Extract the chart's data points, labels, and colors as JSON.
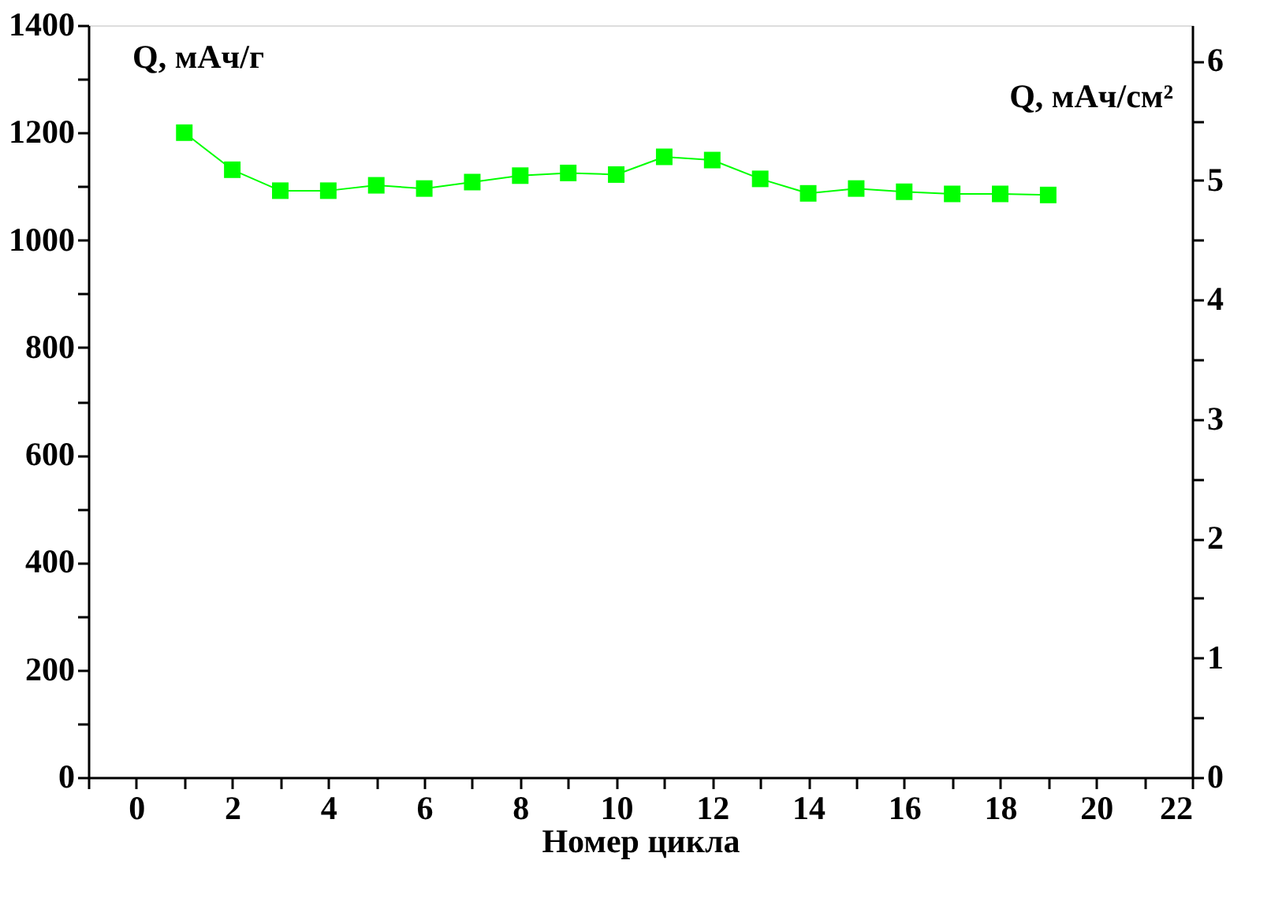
{
  "chart_data": {
    "type": "line",
    "xlabel": "Номер цикла",
    "ylabel": "Q, мАч/г",
    "y2label": "Q, мАч/см²",
    "x": [
      1,
      2,
      3,
      4,
      5,
      6,
      7,
      8,
      9,
      10,
      11,
      12,
      13,
      14,
      15,
      16,
      17,
      18,
      19
    ],
    "series": [
      {
        "color": "#00ff00",
        "values": [
          1200,
          1131,
          1092,
          1092,
          1102,
          1096,
          1108,
          1120,
          1125,
          1122,
          1155,
          1149,
          1114,
          1087,
          1096,
          1090,
          1086,
          1086,
          1084
        ]
      }
    ],
    "xlim": [
      -1,
      22
    ],
    "xticks": [
      {
        "value": -1,
        "label": null
      },
      0,
      {
        "value": 1,
        "label": null
      },
      2,
      {
        "value": 3,
        "label": null
      },
      4,
      {
        "value": 5,
        "label": null
      },
      6,
      {
        "value": 7,
        "label": null
      },
      8,
      {
        "value": 9,
        "label": null
      },
      10,
      {
        "value": 11,
        "label": null
      },
      12,
      {
        "value": 13,
        "label": null
      },
      14,
      {
        "value": 15,
        "label": null
      },
      16,
      {
        "value": 17,
        "label": null
      },
      18,
      {
        "value": 19,
        "label": null
      },
      20,
      {
        "value": 21,
        "label": null
      },
      22
    ],
    "ylim": [
      0,
      1400
    ],
    "yticks": [
      0,
      {
        "value": 100,
        "label": null
      },
      200,
      {
        "value": 300,
        "label": null
      },
      400,
      {
        "value": 500,
        "label": null
      },
      600,
      {
        "value": 700,
        "label": null
      },
      800,
      {
        "value": 900,
        "label": null
      },
      1000,
      {
        "value": 1100,
        "label": null
      },
      1200,
      {
        "value": 1300,
        "label": null
      },
      1400
    ],
    "y2lim": [
      0,
      6.3
    ],
    "y2ticks": [
      0,
      {
        "value": 0.5,
        "label": null
      },
      1,
      {
        "value": 1.5,
        "label": null
      },
      2,
      {
        "value": 2.5,
        "label": null
      },
      3,
      {
        "value": 3.5,
        "label": null
      },
      4,
      {
        "value": 4.5,
        "label": null
      },
      5,
      {
        "value": 5.5,
        "label": null
      },
      6
    ],
    "marker": "square",
    "line_style": "solid",
    "grid": false
  }
}
